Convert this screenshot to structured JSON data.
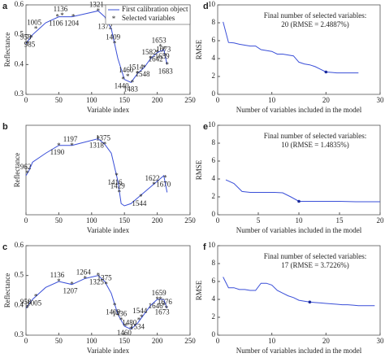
{
  "chart_data": [
    {
      "type": "line",
      "panel": "a",
      "xlabel": "Variable index",
      "ylabel": "Reflectance",
      "xlim": [
        0,
        250
      ],
      "xticks": [
        0,
        50,
        100,
        150,
        200,
        250
      ],
      "ylim": [
        0.3,
        0.6
      ],
      "yticks": [
        0.3,
        0.4,
        0.5,
        0.6
      ],
      "legend": "upper right",
      "series": [
        {
          "name": "First calibration object",
          "color": "#3a4fd8",
          "x": [
            0,
            10,
            20,
            30,
            50,
            70,
            90,
            110,
            120,
            130,
            140,
            150,
            160,
            170,
            180,
            190,
            200,
            210,
            215
          ],
          "values": [
            0.47,
            0.5,
            0.52,
            0.54,
            0.56,
            0.56,
            0.57,
            0.58,
            0.56,
            0.52,
            0.42,
            0.35,
            0.34,
            0.37,
            0.39,
            0.42,
            0.44,
            0.45,
            0.4
          ]
        },
        {
          "name": "Selected variables",
          "color": "#1a2a9a",
          "x": [
            2,
            8,
            15,
            48,
            55,
            72,
            110,
            123,
            135,
            148,
            155,
            162,
            170,
            180,
            190,
            200,
            205,
            210,
            212,
            215
          ],
          "values": [
            0.47,
            0.49,
            0.52,
            0.56,
            0.565,
            0.56,
            0.58,
            0.55,
            0.47,
            0.35,
            0.36,
            0.34,
            0.37,
            0.39,
            0.42,
            0.44,
            0.46,
            0.45,
            0.43,
            0.4
          ],
          "point_labels": [
            "958",
            "985",
            "1005",
            "1106",
            "1136",
            "1204",
            "1321",
            "1372",
            "1409",
            "1440",
            "1460",
            "1483",
            "1514",
            "1548",
            "1582",
            "1642",
            "1653",
            "1659",
            "1673",
            "1683"
          ]
        }
      ]
    },
    {
      "type": "line",
      "panel": "d",
      "xlabel": "Number of variables included in the model",
      "ylabel": "RMSE",
      "xlim": [
        0,
        30
      ],
      "xticks": [
        0,
        10,
        20,
        30
      ],
      "ylim": [
        0,
        10
      ],
      "yticks": [
        0,
        2,
        4,
        6,
        8,
        10
      ],
      "annotations": [
        "Final number of selected variables:",
        "20  (RMSE = 2.4887%)"
      ],
      "marker": {
        "x": 20,
        "y": 2.5
      },
      "series": [
        {
          "color": "#3a4fd8",
          "x": [
            1,
            2,
            3,
            4,
            5,
            6,
            7,
            8,
            9,
            10,
            11,
            12,
            13,
            14,
            15,
            16,
            17,
            18,
            19,
            20,
            21,
            22,
            23,
            24,
            25,
            26
          ],
          "values": [
            8.1,
            5.8,
            5.75,
            5.6,
            5.5,
            5.4,
            5.4,
            5.0,
            4.9,
            4.8,
            4.5,
            4.5,
            4.4,
            4.3,
            3.6,
            3.4,
            3.3,
            3.1,
            2.8,
            2.5,
            2.45,
            2.4,
            2.4,
            2.4,
            2.4,
            2.4
          ]
        }
      ]
    },
    {
      "type": "line",
      "panel": "b",
      "xlabel": "Variable index",
      "ylabel": "Reflectance",
      "xlim": [
        0,
        250
      ],
      "xticks": [
        0,
        50,
        100,
        150,
        200,
        250
      ],
      "ylim": [
        0,
        0.8
      ],
      "yticks": [],
      "series": [
        {
          "color": "#3a4fd8",
          "x": [
            0,
            5,
            10,
            30,
            50,
            70,
            90,
            110,
            120,
            130,
            140,
            145,
            150,
            160,
            170,
            180,
            190,
            200,
            210,
            215
          ],
          "values": [
            0.35,
            0.4,
            0.47,
            0.55,
            0.62,
            0.62,
            0.65,
            0.68,
            0.63,
            0.55,
            0.3,
            0.1,
            0.08,
            0.1,
            0.15,
            0.2,
            0.25,
            0.3,
            0.35,
            0.2
          ]
        },
        {
          "color": "#1a2a9a",
          "x": [
            2,
            50,
            70,
            110,
            120,
            138,
            142,
            175,
            195,
            212
          ],
          "values": [
            0.37,
            0.62,
            0.62,
            0.68,
            0.63,
            0.35,
            0.2,
            0.16,
            0.27,
            0.33
          ],
          "point_labels": [
            "962",
            "1190",
            "1197",
            "1318",
            "1375",
            "1416",
            "1429",
            "1544",
            "1622",
            "1670"
          ]
        }
      ]
    },
    {
      "type": "line",
      "panel": "e",
      "xlabel": "Number of variables included in the model",
      "ylabel": "RMSE",
      "xlim": [
        0,
        20
      ],
      "xticks": [
        0,
        5,
        10,
        15,
        20
      ],
      "ylim": [
        0,
        10
      ],
      "yticks": [
        0,
        2,
        4,
        6,
        8,
        10
      ],
      "annotations": [
        "Final number of selected variables:",
        "10  (RMSE = 1.4835%)"
      ],
      "marker": {
        "x": 10,
        "y": 1.5
      },
      "series": [
        {
          "color": "#3a4fd8",
          "x": [
            1,
            2,
            3,
            4,
            5,
            6,
            7,
            8,
            9,
            10,
            11,
            12,
            13,
            14,
            15,
            16,
            17,
            18,
            19,
            20
          ],
          "values": [
            3.9,
            3.5,
            2.6,
            2.5,
            2.5,
            2.5,
            2.5,
            2.45,
            2.0,
            1.5,
            1.5,
            1.5,
            1.5,
            1.5,
            1.5,
            1.48,
            1.45,
            1.45,
            1.45,
            1.45
          ]
        }
      ]
    },
    {
      "type": "line",
      "panel": "c",
      "xlabel": "Variable index",
      "ylabel": "Reflectance",
      "xlim": [
        0,
        250
      ],
      "xticks": [
        0,
        50,
        100,
        150,
        200,
        250
      ],
      "ylim": [
        0.3,
        0.6
      ],
      "yticks": [
        0.3,
        0.4,
        0.5,
        0.6
      ],
      "series": [
        {
          "color": "#3a4fd8",
          "x": [
            0,
            10,
            20,
            30,
            50,
            70,
            90,
            110,
            120,
            130,
            140,
            150,
            160,
            170,
            180,
            190,
            200,
            210,
            215
          ],
          "values": [
            0.39,
            0.42,
            0.44,
            0.46,
            0.48,
            0.47,
            0.49,
            0.5,
            0.48,
            0.44,
            0.37,
            0.33,
            0.32,
            0.34,
            0.37,
            0.4,
            0.42,
            0.42,
            0.39
          ]
        },
        {
          "color": "#1a2a9a",
          "x": [
            2,
            15,
            50,
            70,
            90,
            110,
            122,
            135,
            145,
            152,
            160,
            172,
            176,
            200,
            205,
            210,
            214
          ],
          "values": [
            0.39,
            0.43,
            0.48,
            0.47,
            0.49,
            0.5,
            0.47,
            0.4,
            0.35,
            0.33,
            0.32,
            0.35,
            0.36,
            0.42,
            0.42,
            0.4,
            0.39
          ],
          "point_labels": [
            "958",
            "1005",
            "1136",
            "1207",
            "1264",
            "1325",
            "1375",
            "1409",
            "1436",
            "1460",
            "1480",
            "1534",
            "1544",
            "1646",
            "1659",
            "1673",
            "1676"
          ]
        }
      ]
    },
    {
      "type": "line",
      "panel": "f",
      "xlabel": "Number of variables included in the model",
      "ylabel": "RMSE",
      "xlim": [
        0,
        30
      ],
      "xticks": [
        0,
        10,
        20,
        30
      ],
      "ylim": [
        0,
        10
      ],
      "yticks": [
        0,
        2,
        4,
        6,
        8,
        10
      ],
      "annotations": [
        "Final number of selected variables:",
        "17  (RMSE = 3.7226%)"
      ],
      "marker": {
        "x": 17,
        "y": 3.7
      },
      "series": [
        {
          "color": "#3a4fd8",
          "x": [
            1,
            2,
            3,
            4,
            5,
            6,
            7,
            8,
            9,
            10,
            11,
            12,
            13,
            14,
            15,
            16,
            17,
            18,
            19,
            20,
            21,
            22,
            23,
            24,
            25,
            26,
            27,
            28,
            29
          ],
          "values": [
            6.5,
            5.3,
            5.3,
            5.1,
            5.1,
            5.0,
            5.0,
            5.8,
            5.8,
            5.6,
            5.0,
            4.7,
            4.4,
            4.2,
            3.9,
            3.8,
            3.7,
            3.65,
            3.6,
            3.55,
            3.5,
            3.45,
            3.4,
            3.4,
            3.35,
            3.3,
            3.3,
            3.3,
            3.3
          ]
        }
      ]
    }
  ]
}
